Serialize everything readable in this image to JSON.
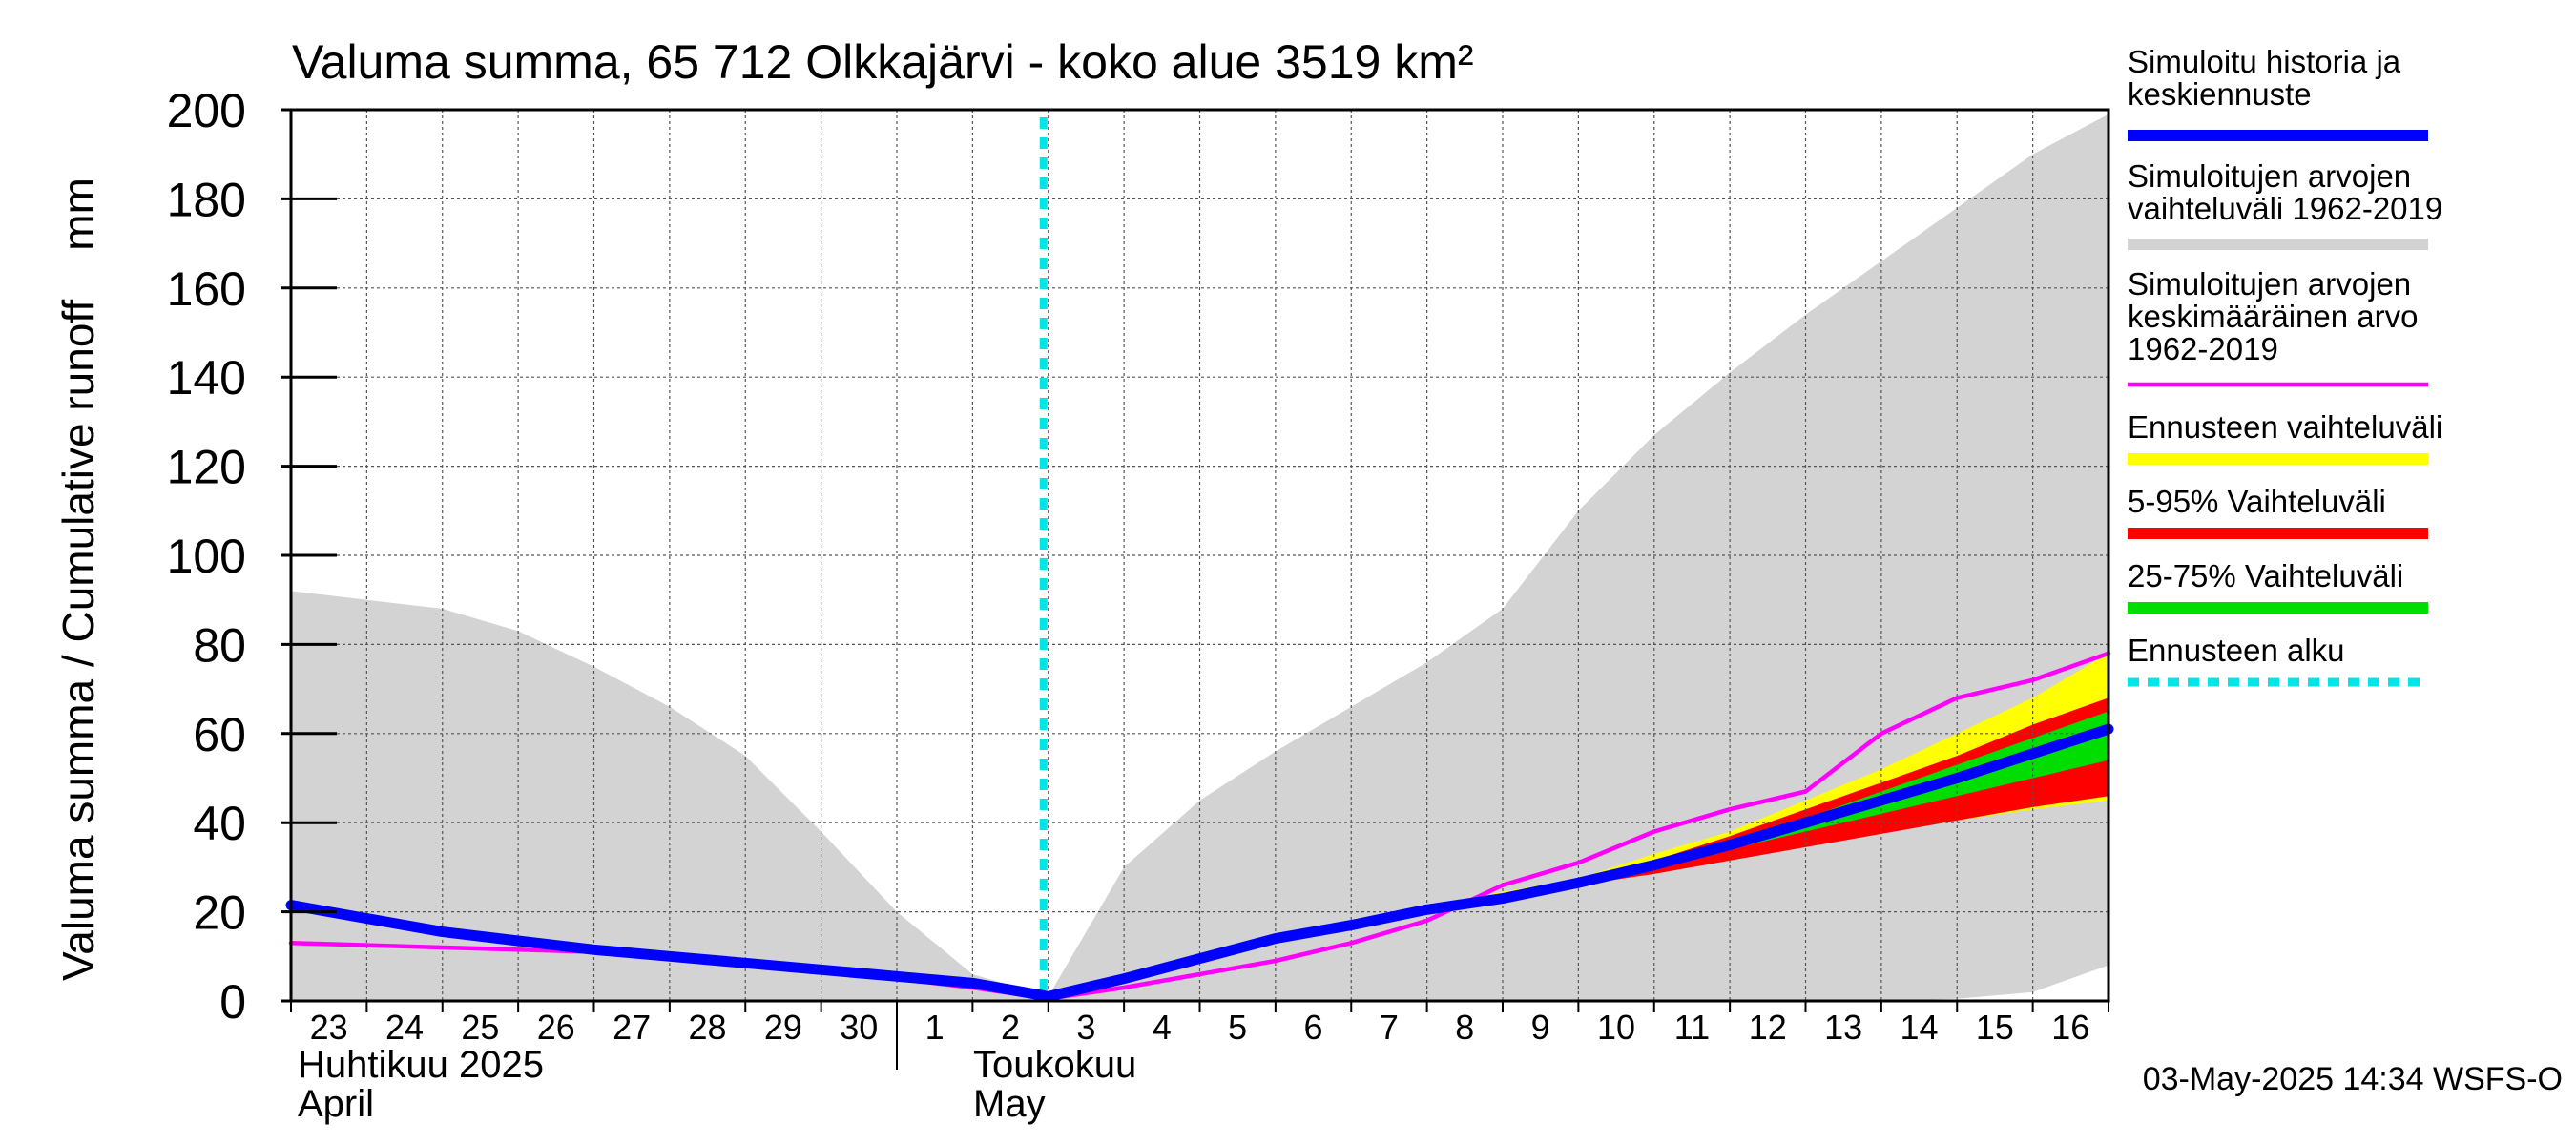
{
  "chart_data": {
    "type": "area",
    "title": "Valuma summa, 65 712 Olkkajärvi - koko alue 3519 km²",
    "ylabel": "Valuma summa / Cumulative runoff    mm",
    "ylim": [
      0,
      200
    ],
    "y_ticks": [
      "0",
      "20",
      "40",
      "60",
      "80",
      "100",
      "120",
      "140",
      "160",
      "180",
      "200"
    ],
    "grid": true,
    "legend_position": "right",
    "x_day_labels": [
      "23",
      "24",
      "25",
      "26",
      "27",
      "28",
      "29",
      "30",
      "1",
      "2",
      "3",
      "4",
      "5",
      "6",
      "7",
      "8",
      "9",
      "10",
      "11",
      "12",
      "13",
      "14",
      "15",
      "16"
    ],
    "x_month_labels": {
      "april_fi": "Huhtikuu  2025",
      "april_en": "April",
      "may_fi": "Toukokuu",
      "may_en": "May"
    },
    "x": [
      "2025-04-23",
      "2025-04-24",
      "2025-04-25",
      "2025-04-26",
      "2025-04-27",
      "2025-04-28",
      "2025-04-29",
      "2025-04-30",
      "2025-05-01",
      "2025-05-02",
      "2025-05-03",
      "2025-05-04",
      "2025-05-05",
      "2025-05-06",
      "2025-05-07",
      "2025-05-08",
      "2025-05-09",
      "2025-05-10",
      "2025-05-11",
      "2025-05-12",
      "2025-05-13",
      "2025-05-14",
      "2025-05-15",
      "2025-05-16",
      "2025-05-17"
    ],
    "series": [
      {
        "name": "Simuloitujen arvojen vaihteluväli 1962-2019",
        "color": "#d3d3d3",
        "kind": "band",
        "lower": [
          0,
          0,
          0,
          0,
          0,
          0,
          0,
          0,
          0,
          0,
          0,
          0,
          0,
          0,
          0,
          0,
          0,
          0,
          0,
          0,
          0,
          0,
          0.5,
          2,
          8
        ],
        "upper": [
          92,
          90,
          88,
          83,
          75,
          66,
          55,
          38,
          20,
          6,
          1,
          30,
          45,
          56,
          66,
          76,
          88,
          110,
          127,
          141,
          154,
          166,
          178,
          190,
          199
        ]
      },
      {
        "name": "Ennusteen vaihteluväli",
        "color": "#ffff00",
        "kind": "band",
        "lower": [
          null,
          null,
          null,
          null,
          null,
          null,
          null,
          null,
          null,
          null,
          0.5,
          5,
          9,
          14,
          17,
          21,
          23.5,
          27,
          30,
          33,
          36.5,
          38,
          40.5,
          43,
          45
        ],
        "upper": [
          null,
          null,
          null,
          null,
          null,
          null,
          null,
          null,
          null,
          null,
          0.5,
          5,
          9,
          14,
          17,
          21,
          24.5,
          27.5,
          33,
          38,
          45,
          52,
          60,
          68,
          78
        ]
      },
      {
        "name": "5-95% Vaihteluväli",
        "color": "#ff0000",
        "kind": "band",
        "lower": [
          null,
          null,
          null,
          null,
          null,
          null,
          null,
          null,
          null,
          null,
          0.5,
          5,
          9,
          14,
          17,
          21,
          23,
          26,
          28.5,
          31.5,
          34.5,
          37.5,
          40.5,
          43.5,
          46
        ],
        "upper": [
          null,
          null,
          null,
          null,
          null,
          null,
          null,
          null,
          null,
          null,
          0.5,
          5,
          9,
          14,
          17,
          21,
          24,
          27.5,
          31.5,
          37,
          43,
          49,
          55,
          62,
          68
        ]
      },
      {
        "name": "25-75% Vaihteluväli",
        "color": "#00dd00",
        "kind": "band",
        "lower": [
          null,
          null,
          null,
          null,
          null,
          null,
          null,
          null,
          null,
          null,
          0.5,
          5,
          9,
          14,
          17,
          21,
          23.5,
          26.5,
          30,
          34,
          38,
          42,
          46,
          50,
          54
        ],
        "upper": [
          null,
          null,
          null,
          null,
          null,
          null,
          null,
          null,
          null,
          null,
          0.5,
          5,
          9,
          14,
          17,
          21,
          23.5,
          27,
          31,
          36,
          41,
          47,
          53,
          59,
          65
        ]
      },
      {
        "name": "Simuloitujen arvojen keskimääräinen arvo 1962-2019",
        "color": "#ff00ff",
        "kind": "line",
        "values": [
          13,
          12.5,
          12,
          11.5,
          11,
          10,
          8.5,
          7,
          5,
          3,
          0.5,
          3,
          6,
          9,
          13,
          18,
          26,
          31,
          38,
          43,
          47,
          60,
          68,
          72,
          78
        ]
      },
      {
        "name": "Simuloitu historia ja keskiennuste",
        "color": "#0000ff",
        "kind": "line",
        "values": [
          21.5,
          18.5,
          15.5,
          13.5,
          11.5,
          10,
          8.5,
          7,
          5.5,
          4,
          1,
          5,
          9.5,
          14,
          17,
          20.5,
          23,
          26.5,
          30.5,
          35,
          40,
          45,
          50,
          55.5,
          61
        ]
      }
    ],
    "forecast_start": "2025-05-03",
    "legend": [
      {
        "label_lines": [
          "Simuloitu historia ja",
          "keskiennuste"
        ],
        "color": "#0000ff",
        "style": "solid"
      },
      {
        "label_lines": [
          "Simuloitujen arvojen",
          "vaihteluväli 1962-2019"
        ],
        "color": "#d3d3d3",
        "style": "solid"
      },
      {
        "label_lines": [
          "Simuloitujen arvojen",
          "keskimääräinen arvo",
          "   1962-2019"
        ],
        "color": "#ff00ff",
        "style": "thin"
      },
      {
        "label_lines": [
          "Ennusteen vaihteluväli"
        ],
        "color": "#ffff00",
        "style": "solid"
      },
      {
        "label_lines": [
          "5-95% Vaihteluväli"
        ],
        "color": "#ff0000",
        "style": "solid"
      },
      {
        "label_lines": [
          "25-75% Vaihteluväli"
        ],
        "color": "#00dd00",
        "style": "solid"
      },
      {
        "label_lines": [
          "Ennusteen alku"
        ],
        "color": "#00e5e5",
        "style": "dashed"
      }
    ],
    "footer": "03-May-2025 14:34 WSFS-O"
  }
}
